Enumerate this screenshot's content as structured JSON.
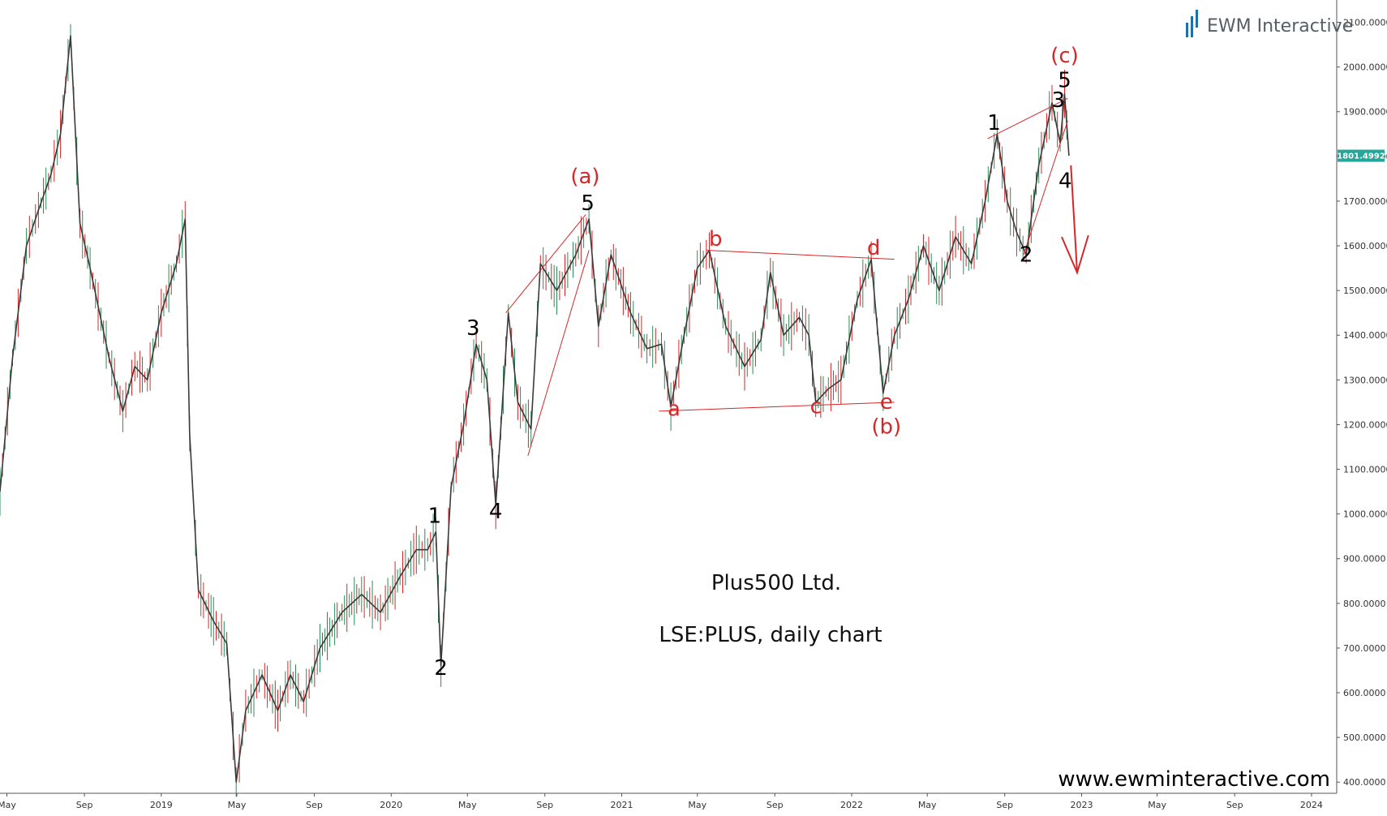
{
  "brand": {
    "logo_text": "EWM Interactive",
    "url": "www.ewminteractive.com",
    "logo_color": "#1f6fa8"
  },
  "colors": {
    "up_candle": "#2e8b57",
    "down_candle": "#d62728",
    "wave_black": "#000000",
    "wave_red": "#d62728",
    "price_badge": "#26a69a"
  },
  "chart_data": {
    "type": "line",
    "title": "Plus500 Ltd.",
    "subtitle": "LSE:PLUS, daily chart",
    "xlabel": "",
    "ylabel": "",
    "grid": false,
    "y_axis_position": "right",
    "ylim": [
      375,
      2150
    ],
    "yticks": [
      "400.0000",
      "500.0000",
      "600.0000",
      "700.0000",
      "800.0000",
      "900.0000",
      "1000.0000",
      "1100.0000",
      "1200.0000",
      "1300.0000",
      "1400.0000",
      "1500.0000",
      "1600.0000",
      "1700.0000",
      "1800.0000",
      "1900.0000",
      "2000.0000",
      "2100.0000"
    ],
    "ytick_values": [
      400,
      500,
      600,
      700,
      800,
      900,
      1000,
      1100,
      1200,
      1300,
      1400,
      1500,
      1600,
      1700,
      1800,
      1900,
      2000,
      2100
    ],
    "xlim": [
      "2018-04-20",
      "2024-02-10"
    ],
    "xticks": [
      {
        "date": "2018-05-01",
        "label": "May"
      },
      {
        "date": "2018-09-01",
        "label": "Sep"
      },
      {
        "date": "2019-01-01",
        "label": "2019"
      },
      {
        "date": "2019-05-01",
        "label": "May"
      },
      {
        "date": "2019-09-01",
        "label": "Sep"
      },
      {
        "date": "2020-01-01",
        "label": "2020"
      },
      {
        "date": "2020-05-01",
        "label": "May"
      },
      {
        "date": "2020-09-01",
        "label": "Sep"
      },
      {
        "date": "2021-01-01",
        "label": "2021"
      },
      {
        "date": "2021-05-01",
        "label": "May"
      },
      {
        "date": "2021-09-01",
        "label": "Sep"
      },
      {
        "date": "2022-01-01",
        "label": "2022"
      },
      {
        "date": "2022-05-01",
        "label": "May"
      },
      {
        "date": "2022-09-01",
        "label": "Sep"
      },
      {
        "date": "2023-01-01",
        "label": "2023"
      },
      {
        "date": "2023-05-01",
        "label": "May"
      },
      {
        "date": "2023-09-01",
        "label": "Sep"
      },
      {
        "date": "2024-01-01",
        "label": "2024"
      }
    ],
    "last_price": {
      "value": 1801.4992,
      "label": "1801.4992"
    },
    "series": [
      {
        "points": [
          {
            "x": "2018-04-20",
            "y": 1050
          },
          {
            "x": "2018-05-10",
            "y": 1350
          },
          {
            "x": "2018-06-01",
            "y": 1600
          },
          {
            "x": "2018-06-20",
            "y": 1680
          },
          {
            "x": "2018-07-10",
            "y": 1760
          },
          {
            "x": "2018-07-25",
            "y": 1850
          },
          {
            "x": "2018-08-10",
            "y": 2070
          },
          {
            "x": "2018-08-25",
            "y": 1650
          },
          {
            "x": "2018-09-10",
            "y": 1550
          },
          {
            "x": "2018-10-10",
            "y": 1350
          },
          {
            "x": "2018-11-01",
            "y": 1230
          },
          {
            "x": "2018-11-20",
            "y": 1330
          },
          {
            "x": "2018-12-10",
            "y": 1300
          },
          {
            "x": "2019-01-01",
            "y": 1450
          },
          {
            "x": "2019-01-25",
            "y": 1560
          },
          {
            "x": "2019-02-08",
            "y": 1660
          },
          {
            "x": "2019-02-15",
            "y": 1180
          },
          {
            "x": "2019-03-01",
            "y": 830
          },
          {
            "x": "2019-03-25",
            "y": 760
          },
          {
            "x": "2019-04-15",
            "y": 710
          },
          {
            "x": "2019-04-30",
            "y": 400
          },
          {
            "x": "2019-05-15",
            "y": 560
          },
          {
            "x": "2019-06-10",
            "y": 640
          },
          {
            "x": "2019-07-05",
            "y": 560
          },
          {
            "x": "2019-07-25",
            "y": 640
          },
          {
            "x": "2019-08-15",
            "y": 580
          },
          {
            "x": "2019-09-10",
            "y": 700
          },
          {
            "x": "2019-10-15",
            "y": 780
          },
          {
            "x": "2019-11-15",
            "y": 820
          },
          {
            "x": "2019-12-15",
            "y": 780
          },
          {
            "x": "2020-01-15",
            "y": 860
          },
          {
            "x": "2020-02-10",
            "y": 920
          },
          {
            "x": "2020-02-28",
            "y": 920
          },
          {
            "x": "2020-03-12",
            "y": 960
          },
          {
            "x": "2020-03-20",
            "y": 660
          },
          {
            "x": "2020-04-05",
            "y": 1060
          },
          {
            "x": "2020-04-25",
            "y": 1200
          },
          {
            "x": "2020-05-15",
            "y": 1380
          },
          {
            "x": "2020-06-01",
            "y": 1300
          },
          {
            "x": "2020-06-15",
            "y": 1020
          },
          {
            "x": "2020-07-05",
            "y": 1450
          },
          {
            "x": "2020-07-20",
            "y": 1250
          },
          {
            "x": "2020-08-10",
            "y": 1190
          },
          {
            "x": "2020-08-25",
            "y": 1560
          },
          {
            "x": "2020-09-20",
            "y": 1500
          },
          {
            "x": "2020-10-20",
            "y": 1580
          },
          {
            "x": "2020-11-10",
            "y": 1660
          },
          {
            "x": "2020-11-25",
            "y": 1420
          },
          {
            "x": "2020-12-15",
            "y": 1580
          },
          {
            "x": "2021-01-15",
            "y": 1450
          },
          {
            "x": "2021-02-10",
            "y": 1370
          },
          {
            "x": "2021-03-05",
            "y": 1380
          },
          {
            "x": "2021-03-20",
            "y": 1240
          },
          {
            "x": "2021-04-10",
            "y": 1400
          },
          {
            "x": "2021-05-01",
            "y": 1550
          },
          {
            "x": "2021-05-20",
            "y": 1590
          },
          {
            "x": "2021-06-15",
            "y": 1420
          },
          {
            "x": "2021-07-15",
            "y": 1330
          },
          {
            "x": "2021-08-10",
            "y": 1390
          },
          {
            "x": "2021-08-25",
            "y": 1540
          },
          {
            "x": "2021-09-15",
            "y": 1400
          },
          {
            "x": "2021-10-10",
            "y": 1440
          },
          {
            "x": "2021-10-25",
            "y": 1400
          },
          {
            "x": "2021-11-05",
            "y": 1250
          },
          {
            "x": "2021-11-25",
            "y": 1280
          },
          {
            "x": "2021-12-15",
            "y": 1300
          },
          {
            "x": "2022-01-10",
            "y": 1480
          },
          {
            "x": "2022-02-01",
            "y": 1570
          },
          {
            "x": "2022-02-20",
            "y": 1270
          },
          {
            "x": "2022-03-10",
            "y": 1400
          },
          {
            "x": "2022-04-01",
            "y": 1480
          },
          {
            "x": "2022-04-25",
            "y": 1600
          },
          {
            "x": "2022-05-20",
            "y": 1500
          },
          {
            "x": "2022-06-15",
            "y": 1620
          },
          {
            "x": "2022-07-10",
            "y": 1560
          },
          {
            "x": "2022-08-01",
            "y": 1700
          },
          {
            "x": "2022-08-20",
            "y": 1850
          },
          {
            "x": "2022-09-05",
            "y": 1700
          },
          {
            "x": "2022-09-20",
            "y": 1630
          },
          {
            "x": "2022-10-05",
            "y": 1580
          },
          {
            "x": "2022-10-25",
            "y": 1780
          },
          {
            "x": "2022-11-15",
            "y": 1920
          },
          {
            "x": "2022-11-28",
            "y": 1830
          },
          {
            "x": "2022-12-05",
            "y": 1940
          },
          {
            "x": "2022-12-12",
            "y": 1801.5
          }
        ]
      }
    ],
    "annotations": [
      {
        "text": "1",
        "x": "2020-03-10",
        "y": 980,
        "color": "black"
      },
      {
        "text": "2",
        "x": "2020-03-20",
        "y": 640,
        "color": "black"
      },
      {
        "text": "3",
        "x": "2020-05-10",
        "y": 1400,
        "color": "black"
      },
      {
        "text": "4",
        "x": "2020-06-15",
        "y": 990,
        "color": "black"
      },
      {
        "text": "5",
        "x": "2020-11-08",
        "y": 1680,
        "color": "black"
      },
      {
        "text": "(a)",
        "x": "2020-11-04",
        "y": 1740,
        "color": "red"
      },
      {
        "text": "a",
        "x": "2021-03-25",
        "y": 1220,
        "color": "red"
      },
      {
        "text": "b",
        "x": "2021-05-30",
        "y": 1600,
        "color": "red"
      },
      {
        "text": "c",
        "x": "2021-11-05",
        "y": 1225,
        "color": "red"
      },
      {
        "text": "d",
        "x": "2022-02-05",
        "y": 1580,
        "color": "red"
      },
      {
        "text": "e",
        "x": "2022-02-25",
        "y": 1235,
        "color": "red"
      },
      {
        "text": "(b)",
        "x": "2022-02-25",
        "y": 1180,
        "color": "red"
      },
      {
        "text": "1",
        "x": "2022-08-15",
        "y": 1860,
        "color": "black"
      },
      {
        "text": "2",
        "x": "2022-10-05",
        "y": 1565,
        "color": "black"
      },
      {
        "text": "3",
        "x": "2022-11-25",
        "y": 1910,
        "color": "black"
      },
      {
        "text": "4",
        "x": "2022-12-06",
        "y": 1730,
        "color": "black"
      },
      {
        "text": "5",
        "x": "2022-12-05",
        "y": 1955,
        "color": "black"
      },
      {
        "text": "(c)",
        "x": "2022-12-05",
        "y": 2010,
        "color": "red"
      }
    ],
    "trendlines": [
      {
        "from": {
          "x": "2020-07-01",
          "y": 1450
        },
        "to": {
          "x": "2020-11-05",
          "y": 1670
        }
      },
      {
        "from": {
          "x": "2020-08-05",
          "y": 1130
        },
        "to": {
          "x": "2020-11-10",
          "y": 1590
        }
      },
      {
        "from": {
          "x": "2021-03-01",
          "y": 1230
        },
        "to": {
          "x": "2022-03-10",
          "y": 1250
        }
      },
      {
        "from": {
          "x": "2021-05-15",
          "y": 1590
        },
        "to": {
          "x": "2022-03-10",
          "y": 1570
        }
      },
      {
        "from": {
          "x": "2022-08-05",
          "y": 1840
        },
        "to": {
          "x": "2022-12-10",
          "y": 1930
        }
      },
      {
        "from": {
          "x": "2022-10-01",
          "y": 1580
        },
        "to": {
          "x": "2022-12-10",
          "y": 1880
        }
      }
    ],
    "projection_arrow": {
      "from": {
        "x": "2022-12-15",
        "y": 1780
      },
      "to": {
        "x": "2022-12-25",
        "y": 1540
      }
    }
  }
}
